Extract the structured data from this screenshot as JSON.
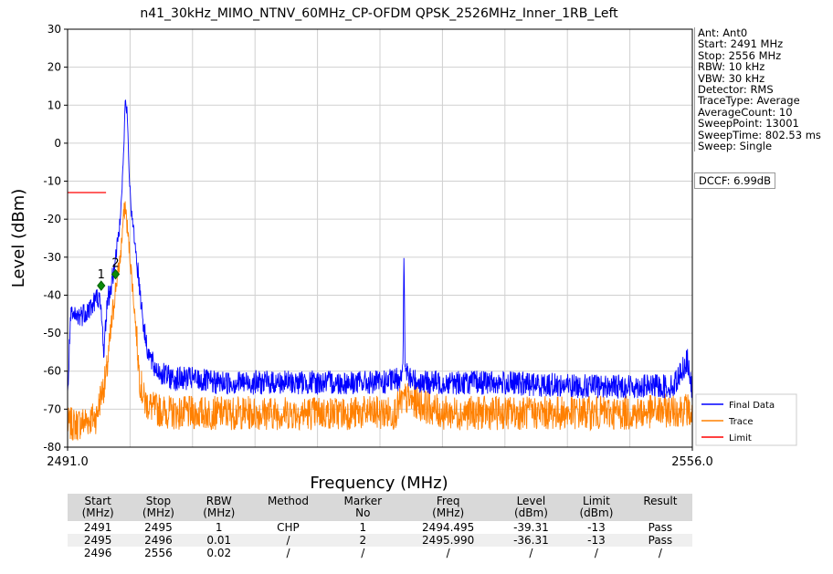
{
  "chart_data": {
    "type": "line",
    "title": "n41_30kHz_MIMO_NTNV_60MHz_CP-OFDM QPSK_2526MHz_Inner_1RB_Left",
    "xlabel": "Frequency (MHz)",
    "ylabel": "Level (dBm)",
    "xlim": [
      2491.0,
      2556.0
    ],
    "ylim": [
      -80,
      30
    ],
    "x_tick_labels": [
      "2491.0",
      "2556.0"
    ],
    "y_ticks": [
      30,
      20,
      10,
      0,
      -10,
      -20,
      -30,
      -40,
      -50,
      -60,
      -70,
      -80
    ],
    "grid": true,
    "legend_placement": "bottom-right",
    "series": [
      {
        "name": "Final Data",
        "color": "#0000ff",
        "x": [
          2491.0,
          2491.3,
          2491.8,
          2492.5,
          2493.5,
          2494.2,
          2494.5,
          2494.8,
          2495.1,
          2495.5,
          2496.0,
          2496.4,
          2496.8,
          2497.0,
          2497.2,
          2497.4,
          2497.7,
          2498.0,
          2498.5,
          2499.0,
          2499.5,
          2500.0,
          2501.0,
          2502.0,
          2504.0,
          2506.0,
          2510.0,
          2515.0,
          2520.0,
          2524.0,
          2525.5,
          2525.9,
          2526.0,
          2526.1,
          2526.5,
          2528.0,
          2535.0,
          2545.0,
          2551.0,
          2554.0,
          2555.5,
          2555.8,
          2556.0
        ],
        "y": [
          -67,
          -46,
          -46,
          -45,
          -43,
          -40,
          -45,
          -55,
          -42,
          -38,
          -30,
          -22,
          -5,
          11,
          8,
          -8,
          -20,
          -26,
          -38,
          -50,
          -56,
          -59,
          -61,
          -62,
          -62,
          -63,
          -63,
          -63,
          -63,
          -63,
          -62,
          -58,
          -28,
          -58,
          -62,
          -63,
          -63,
          -64,
          -64,
          -64,
          -57,
          -63,
          -66
        ]
      },
      {
        "name": "Trace",
        "color": "#ff8000",
        "x": [
          2491.0,
          2492.0,
          2493.0,
          2494.0,
          2494.5,
          2495.0,
          2495.5,
          2496.0,
          2496.5,
          2496.8,
          2497.0,
          2497.2,
          2497.5,
          2498.0,
          2498.5,
          2499.0,
          2500.0,
          2502.0,
          2505.0,
          2510.0,
          2515.0,
          2520.0,
          2525.0,
          2526.0,
          2530.0,
          2540.0,
          2550.0,
          2555.5,
          2556.0
        ],
        "y": [
          -74,
          -74,
          -73,
          -72,
          -66,
          -62,
          -50,
          -38,
          -30,
          -20,
          -16,
          -22,
          -30,
          -45,
          -62,
          -68,
          -70,
          -71,
          -71,
          -71,
          -71,
          -71,
          -71,
          -67,
          -71,
          -71,
          -71,
          -70,
          -72
        ]
      },
      {
        "name": "Limit",
        "color": "#ff0000",
        "x": [
          2491.0,
          2495.0
        ],
        "y": [
          -13,
          -13
        ]
      }
    ],
    "markers": [
      {
        "label": "1",
        "x": 2494.495,
        "y": -37.5
      },
      {
        "label": "2",
        "x": 2495.99,
        "y": -34.5
      }
    ],
    "info": [
      "Ant: Ant0",
      "Start: 2491 MHz",
      "Stop: 2556 MHz",
      "RBW: 10 kHz",
      "VBW: 30 kHz",
      "Detector: RMS",
      "TraceType: Average",
      "AverageCount: 10",
      "SweepPoint: 13001",
      "SweepTime: 802.53 ms",
      "Sweep: Single"
    ],
    "dccf": "DCCF: 6.99dB"
  },
  "table": {
    "headers": [
      [
        "Start",
        "(MHz)"
      ],
      [
        "Stop",
        "(MHz)"
      ],
      [
        "RBW",
        "(MHz)"
      ],
      [
        "Method",
        ""
      ],
      [
        "Marker",
        "No"
      ],
      [
        "Freq",
        "(MHz)"
      ],
      [
        "Level",
        "(dBm)"
      ],
      [
        "Limit",
        "(dBm)"
      ],
      [
        "Result",
        ""
      ]
    ],
    "rows": [
      [
        "2491",
        "2495",
        "1",
        "CHP",
        "1",
        "2494.495",
        "-39.31",
        "-13",
        "Pass"
      ],
      [
        "2495",
        "2496",
        "0.01",
        "/",
        "2",
        "2495.990",
        "-36.31",
        "-13",
        "Pass"
      ],
      [
        "2496",
        "2556",
        "0.02",
        "/",
        "/",
        "/",
        "/",
        "/",
        "/"
      ]
    ]
  }
}
